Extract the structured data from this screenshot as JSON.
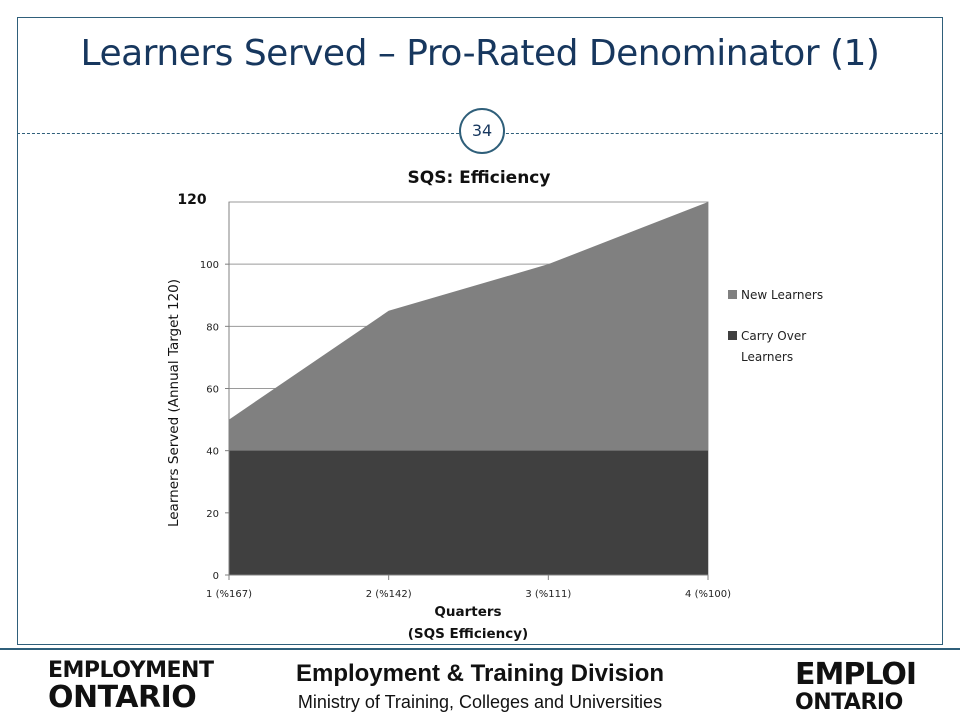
{
  "slide": {
    "title": "Learners Served – Pro-Rated Denominator (1)",
    "page_number": "34"
  },
  "footer": {
    "logo_en_line1": "EMPLOYMENT",
    "logo_en_line2": "ONTARIO",
    "division_title": "Employment & Training Division",
    "division_subtitle": "Ministry of Training, Colleges and Universities",
    "logo_fr_line1": "EMPLOI",
    "logo_fr_line2": "ONTARIO"
  },
  "colors": {
    "frame": "#2f5f7a",
    "title": "#17375e",
    "new_learners": "#808080",
    "carry_over": "#404040"
  },
  "chart_data": {
    "type": "area",
    "title": "SQS: Efficiency",
    "xlabel_line1": "Quarters",
    "xlabel_line2": "(SQS Efficiency)",
    "ylabel": "Learners Served (Annual Target 120)",
    "categories": [
      "1 (%167)",
      "2 (%142)",
      "3 (%111)",
      "4 (%100)"
    ],
    "ylim": [
      0,
      120
    ],
    "y_ticks": [
      "0",
      "20",
      "40",
      "60",
      "80",
      "100"
    ],
    "y_top_label": "120",
    "grid": true,
    "stacked": true,
    "legend_position": "right",
    "series": [
      {
        "name": "Carry Over Learners",
        "values": [
          40,
          40,
          40,
          40
        ]
      },
      {
        "name": "New Learners",
        "values": [
          10,
          45,
          60,
          80
        ]
      }
    ],
    "legend": [
      "New Learners",
      "Carry Over Learners"
    ]
  }
}
